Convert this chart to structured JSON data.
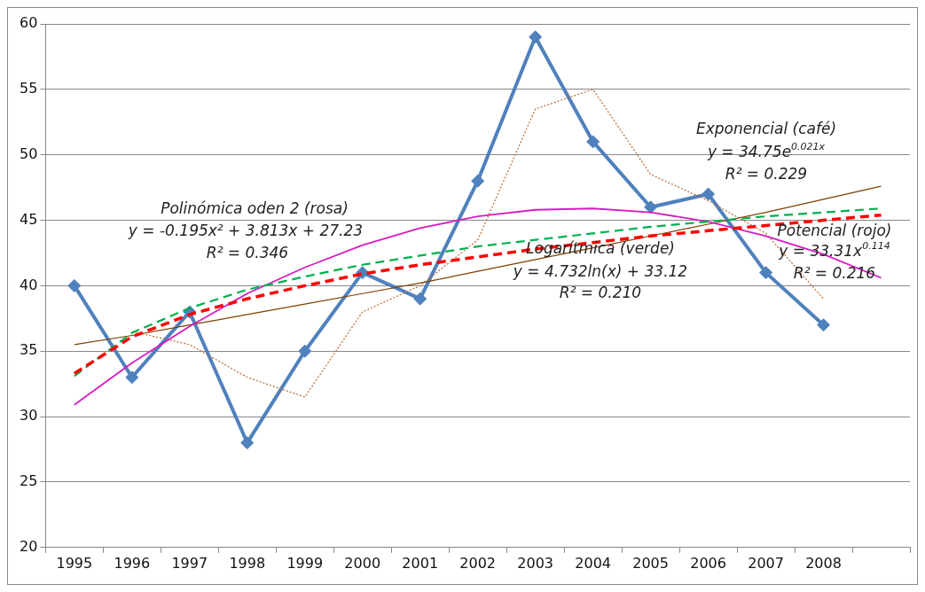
{
  "chart_data": {
    "type": "line",
    "categories": [
      "1995",
      "1996",
      "1997",
      "1998",
      "1999",
      "2000",
      "2001",
      "2002",
      "2003",
      "2004",
      "2005",
      "2006",
      "2007",
      "2008",
      null
    ],
    "series": [
      {
        "color": "#4f81bd",
        "marker": "diamond",
        "line_style": "solid",
        "values": [
          40,
          33,
          38,
          28,
          35,
          41,
          39,
          48,
          59,
          51,
          46,
          47,
          41,
          37,
          null
        ]
      },
      {
        "color": "#b8692f",
        "marker": "none",
        "line_style": "dotted",
        "values": [
          null,
          36.5,
          35.5,
          33,
          31.5,
          38,
          40,
          43.5,
          53.5,
          55,
          48.5,
          46.5,
          44,
          39,
          null
        ]
      },
      {
        "color": "#7f3f00",
        "marker": "none",
        "line_style": "solid",
        "values": [
          35.5,
          36.2,
          37,
          37.8,
          38.6,
          39.4,
          40.2,
          41.1,
          42,
          42.9,
          43.8,
          44.7,
          45.6,
          46.6,
          47.6
        ]
      },
      {
        "color": "#d81bc0",
        "marker": "none",
        "line_style": "solid",
        "values": [
          30.9,
          34.1,
          36.9,
          39.4,
          41.4,
          43.1,
          44.4,
          45.3,
          45.8,
          45.9,
          45.6,
          44.9,
          43.8,
          42.4,
          40.6
        ]
      },
      {
        "color": "#00b050",
        "marker": "none",
        "line_style": "dashed",
        "values": [
          33.1,
          36.4,
          38.3,
          39.7,
          40.7,
          41.6,
          42.3,
          43,
          43.5,
          44,
          44.5,
          44.9,
          45.3,
          45.6,
          45.9
        ]
      },
      {
        "color": "#ff0000",
        "marker": "none",
        "line_style": "dashed",
        "values": [
          33.3,
          36.1,
          37.8,
          39,
          40,
          40.9,
          41.6,
          42.2,
          42.8,
          43.3,
          43.8,
          44.2,
          44.6,
          45,
          45.4
        ]
      }
    ],
    "ylim": [
      20,
      60
    ],
    "yticks": [
      20,
      25,
      30,
      35,
      40,
      45,
      50,
      55,
      60
    ],
    "grid": "y",
    "legend": false,
    "annotations": [
      "Polinómica oden 2 (rosa)",
      "y = -0.195x² + 3.813x + 27.23",
      "R² = 0.346",
      "Exponencial (café)",
      "y = 34.75e$^{0.021x}$",
      "R² = 0.229",
      "Logarítmica (verde)",
      "y = 4.732ln(x) + 33.12",
      "R² = 0.210",
      "Potencial (rojo)",
      "y = 33.31x$^{0.114}$",
      "R² = 0.216"
    ]
  }
}
